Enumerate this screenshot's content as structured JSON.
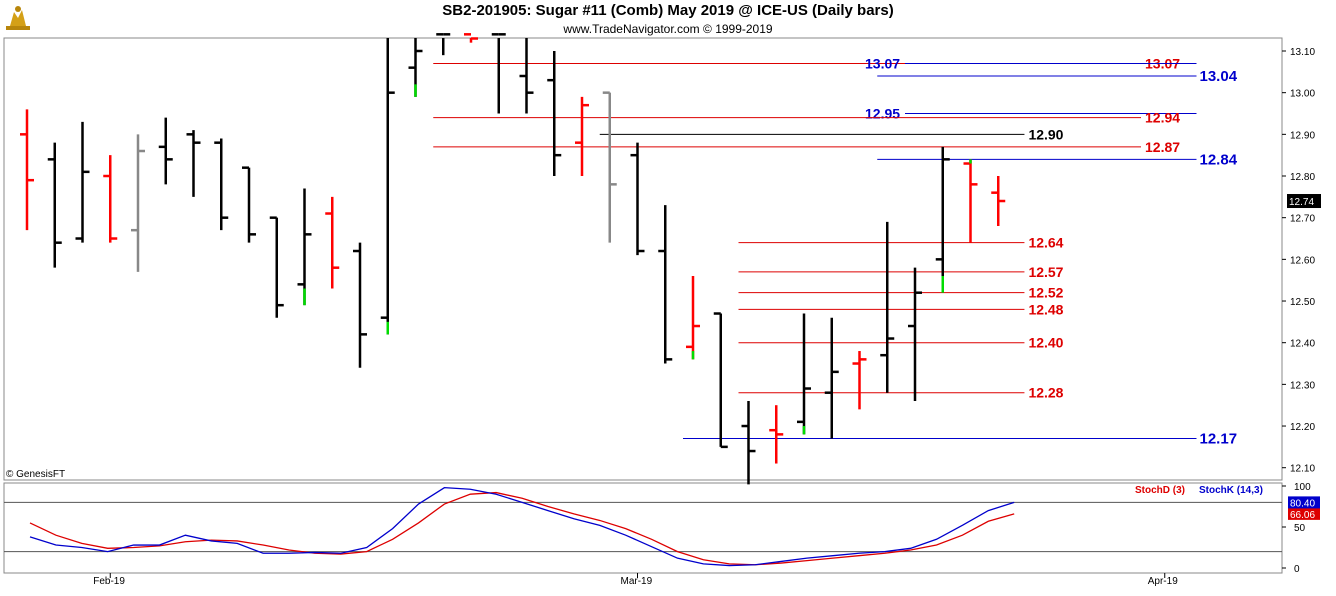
{
  "header": {
    "title": "SB2-201905:  Sugar #11 (Comb) May 2019 @ ICE-US  (Daily bars)",
    "subtitle": "www.TradeNavigator.com © 1999-2019",
    "credit": "© GenesisFT"
  },
  "colors": {
    "up": "#ff0000",
    "down": "#000000",
    "neutral": "#888888",
    "highlight": "#00dd00",
    "level_red": "#dd0000",
    "level_blue": "#0000cc",
    "stoch_d": "#dd0000",
    "stoch_k": "#0000cc"
  },
  "chart_data": [
    {
      "type": "ohlc",
      "title": "SB2-201905:  Sugar #11 (Comb) May 2019 @ ICE-US  (Daily bars)",
      "ylim": [
        12.05,
        13.14
      ],
      "yticks": [
        "13.10",
        "13.00",
        "12.90",
        "12.80",
        "12.70",
        "12.60",
        "12.50",
        "12.40",
        "12.30",
        "12.20",
        "12.10"
      ],
      "last_price": "12.74",
      "x_labels": [
        {
          "label": "Feb-19",
          "index": 3
        },
        {
          "label": "Mar-19",
          "index": 22
        },
        {
          "label": "Apr-19",
          "index": 41
        }
      ],
      "bars": [
        {
          "o": 12.9,
          "h": 12.96,
          "l": 12.67,
          "c": 12.79,
          "col": "up"
        },
        {
          "o": 12.84,
          "h": 12.88,
          "l": 12.58,
          "c": 12.64,
          "col": "down"
        },
        {
          "o": 12.65,
          "h": 12.93,
          "l": 12.64,
          "c": 12.81,
          "col": "down"
        },
        {
          "o": 12.8,
          "h": 12.85,
          "l": 12.64,
          "c": 12.65,
          "col": "up"
        },
        {
          "o": 12.67,
          "h": 12.9,
          "l": 12.57,
          "c": 12.86,
          "col": "neutral"
        },
        {
          "o": 12.87,
          "h": 12.94,
          "l": 12.78,
          "c": 12.84,
          "col": "down"
        },
        {
          "o": 12.9,
          "h": 12.91,
          "l": 12.75,
          "c": 12.88,
          "col": "down"
        },
        {
          "o": 12.88,
          "h": 12.89,
          "l": 12.67,
          "c": 12.7,
          "col": "down"
        },
        {
          "o": 12.82,
          "h": 12.82,
          "l": 12.64,
          "c": 12.66,
          "col": "down"
        },
        {
          "o": 12.7,
          "h": 12.7,
          "l": 12.46,
          "c": 12.49,
          "col": "down"
        },
        {
          "o": 12.54,
          "h": 12.77,
          "l": 12.49,
          "c": 12.66,
          "col": "down",
          "green": [
            12.49,
            12.53
          ]
        },
        {
          "o": 12.71,
          "h": 12.75,
          "l": 12.53,
          "c": 12.58,
          "col": "up"
        },
        {
          "o": 12.62,
          "h": 12.64,
          "l": 12.34,
          "c": 12.42,
          "col": "down"
        },
        {
          "o": 12.46,
          "h": 13.14,
          "l": 12.42,
          "c": 13.0,
          "col": "down",
          "green": [
            12.42,
            12.45
          ]
        },
        {
          "o": 13.06,
          "h": 13.14,
          "l": 12.99,
          "c": 13.1,
          "col": "down",
          "green": [
            12.99,
            13.02
          ]
        },
        {
          "o": 13.14,
          "h": 13.14,
          "l": 13.09,
          "c": 13.14,
          "col": "down"
        },
        {
          "o": 13.14,
          "h": 13.14,
          "l": 13.12,
          "c": 13.13,
          "col": "up"
        },
        {
          "o": 13.14,
          "h": 13.14,
          "l": 12.95,
          "c": 13.14,
          "col": "down"
        },
        {
          "o": 13.04,
          "h": 13.14,
          "l": 12.95,
          "c": 13.0,
          "col": "down"
        },
        {
          "o": 13.03,
          "h": 13.1,
          "l": 12.8,
          "c": 12.85,
          "col": "down"
        },
        {
          "o": 12.88,
          "h": 12.99,
          "l": 12.8,
          "c": 12.97,
          "col": "up"
        },
        {
          "o": 13.0,
          "h": 13.0,
          "l": 12.64,
          "c": 12.78,
          "col": "neutral"
        },
        {
          "o": 12.85,
          "h": 12.88,
          "l": 12.61,
          "c": 12.62,
          "col": "down"
        },
        {
          "o": 12.62,
          "h": 12.73,
          "l": 12.35,
          "c": 12.36,
          "col": "down"
        },
        {
          "o": 12.39,
          "h": 12.56,
          "l": 12.36,
          "c": 12.44,
          "col": "up",
          "green": [
            12.36,
            12.38
          ]
        },
        {
          "o": 12.47,
          "h": 12.47,
          "l": 12.15,
          "c": 12.15,
          "col": "down"
        },
        {
          "o": 12.2,
          "h": 12.26,
          "l": 12.06,
          "c": 12.14,
          "col": "down"
        },
        {
          "o": 12.19,
          "h": 12.25,
          "l": 12.11,
          "c": 12.18,
          "col": "up"
        },
        {
          "o": 12.21,
          "h": 12.47,
          "l": 12.18,
          "c": 12.29,
          "col": "down",
          "green": [
            12.18,
            12.2
          ]
        },
        {
          "o": 12.28,
          "h": 12.46,
          "l": 12.17,
          "c": 12.33,
          "col": "down"
        },
        {
          "o": 12.35,
          "h": 12.38,
          "l": 12.24,
          "c": 12.36,
          "col": "up"
        },
        {
          "o": 12.37,
          "h": 12.69,
          "l": 12.28,
          "c": 12.41,
          "col": "down"
        },
        {
          "o": 12.44,
          "h": 12.58,
          "l": 12.26,
          "c": 12.52,
          "col": "down"
        },
        {
          "o": 12.6,
          "h": 12.87,
          "l": 12.52,
          "c": 12.84,
          "col": "down",
          "green": [
            12.52,
            12.56
          ]
        },
        {
          "o": 12.83,
          "h": 12.84,
          "l": 12.64,
          "c": 12.78,
          "col": "up",
          "green": [
            12.83,
            12.84
          ]
        },
        {
          "o": 12.76,
          "h": 12.8,
          "l": 12.68,
          "c": 12.74,
          "col": "up"
        }
      ],
      "levels": [
        {
          "value": 13.07,
          "label": "13.07",
          "color": "level_red",
          "x1": 15,
          "x2": 40,
          "label_pos": "right"
        },
        {
          "value": 13.07,
          "label": "13.07",
          "color": "level_blue",
          "x1": 32,
          "x2": 42,
          "label_pos": "left"
        },
        {
          "value": 13.04,
          "label": "13.04",
          "color": "level_blue",
          "x1": 31,
          "x2": 42,
          "label_pos": "right-bold"
        },
        {
          "value": 12.95,
          "label": "12.95",
          "color": "level_blue",
          "x1": 32,
          "x2": 42,
          "label_pos": "left"
        },
        {
          "value": 12.94,
          "label": "12.94",
          "color": "level_red",
          "x1": 15,
          "x2": 40,
          "label_pos": "right"
        },
        {
          "value": 12.9,
          "label": "12.90",
          "color": "down",
          "x1": 21,
          "x2": 35.8,
          "label_pos": "right"
        },
        {
          "value": 12.87,
          "label": "12.87",
          "color": "level_red",
          "x1": 15,
          "x2": 40,
          "label_pos": "right"
        },
        {
          "value": 12.84,
          "label": "12.84",
          "color": "level_blue",
          "x1": 31,
          "x2": 42,
          "label_pos": "right-bold"
        },
        {
          "value": 12.64,
          "label": "12.64",
          "color": "level_red",
          "x1": 26,
          "x2": 35.8,
          "label_pos": "right"
        },
        {
          "value": 12.57,
          "label": "12.57",
          "color": "level_red",
          "x1": 26,
          "x2": 35.8,
          "label_pos": "right"
        },
        {
          "value": 12.52,
          "label": "12.52",
          "color": "level_red",
          "x1": 26,
          "x2": 35.8,
          "label_pos": "right"
        },
        {
          "value": 12.48,
          "label": "12.48",
          "color": "level_red",
          "x1": 26,
          "x2": 35.8,
          "label_pos": "right"
        },
        {
          "value": 12.4,
          "label": "12.40",
          "color": "level_red",
          "x1": 26,
          "x2": 35.8,
          "label_pos": "right"
        },
        {
          "value": 12.28,
          "label": "12.28",
          "color": "level_red",
          "x1": 26,
          "x2": 35.8,
          "label_pos": "right"
        },
        {
          "value": 12.17,
          "label": "12.17",
          "color": "level_blue",
          "x1": 24,
          "x2": 42,
          "label_pos": "right-bold"
        }
      ]
    },
    {
      "type": "line",
      "title": "",
      "ylim": [
        0,
        100
      ],
      "yticks": [
        "100",
        "50",
        "0"
      ],
      "hlines": [
        80,
        20
      ],
      "series": [
        {
          "name": "StochD (3)",
          "color": "stoch_d",
          "last": "66.06",
          "values": [
            55,
            40,
            30,
            24,
            25,
            27,
            32,
            34,
            33,
            28,
            22,
            18,
            17,
            20,
            35,
            55,
            78,
            90,
            92,
            85,
            75,
            66,
            58,
            48,
            35,
            20,
            10,
            5,
            4,
            6,
            9,
            12,
            15,
            18,
            22,
            28,
            40,
            57,
            66
          ]
        },
        {
          "name": "StochK (14,3)",
          "color": "stoch_k",
          "last": "80.40",
          "values": [
            38,
            28,
            25,
            20,
            28,
            28,
            40,
            33,
            30,
            18,
            18,
            19,
            18,
            25,
            48,
            78,
            98,
            96,
            90,
            80,
            70,
            60,
            52,
            40,
            26,
            12,
            5,
            3,
            4,
            8,
            12,
            15,
            18,
            20,
            24,
            35,
            52,
            70,
            80
          ]
        }
      ]
    }
  ]
}
